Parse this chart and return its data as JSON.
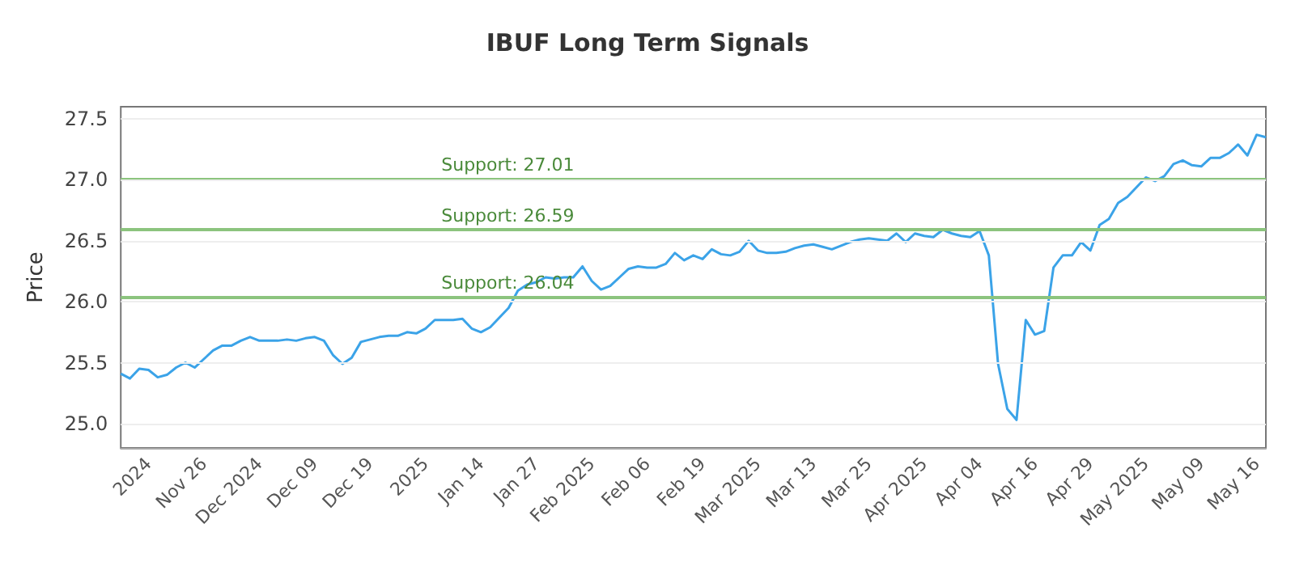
{
  "chart_data": {
    "type": "line",
    "title": "IBUF Long Term Signals",
    "ylabel": "Price",
    "categories": [
      null,
      null,
      null,
      "2024",
      null,
      null,
      null,
      null,
      null,
      "Nov 26",
      null,
      null,
      null,
      null,
      null,
      "Dec 2024",
      null,
      null,
      null,
      null,
      null,
      "Dec 09",
      null,
      null,
      null,
      null,
      null,
      "Dec 19",
      null,
      null,
      null,
      null,
      null,
      "2025",
      null,
      null,
      null,
      null,
      null,
      "Jan 14",
      null,
      null,
      null,
      null,
      null,
      "Jan 27",
      null,
      null,
      null,
      null,
      null,
      "Feb 2025",
      null,
      null,
      null,
      null,
      null,
      "Feb 06",
      null,
      null,
      null,
      null,
      null,
      "Feb 19",
      null,
      null,
      null,
      null,
      null,
      "Mar 2025",
      null,
      null,
      null,
      null,
      null,
      "Mar 13",
      null,
      null,
      null,
      null,
      null,
      "Mar 25",
      null,
      null,
      null,
      null,
      null,
      "Apr 2025",
      null,
      null,
      null,
      null,
      null,
      "Apr 04",
      null,
      null,
      null,
      null,
      null,
      "Apr 16",
      null,
      null,
      null,
      null,
      null,
      "Apr 29",
      null,
      null,
      null,
      null,
      null,
      "May 2025",
      null,
      null,
      null,
      null,
      null,
      "May 09",
      null,
      null,
      null,
      null,
      null,
      "May 16",
      null
    ],
    "series": [
      {
        "color": "#3ba3e8",
        "values": [
          25.41,
          25.37,
          25.45,
          25.44,
          25.38,
          25.4,
          25.46,
          25.5,
          25.46,
          25.53,
          25.6,
          25.64,
          25.64,
          25.68,
          25.71,
          25.68,
          25.68,
          25.68,
          25.69,
          25.68,
          25.7,
          25.71,
          25.68,
          25.56,
          25.49,
          25.54,
          25.67,
          25.69,
          25.71,
          25.72,
          25.72,
          25.75,
          25.74,
          25.78,
          25.85,
          25.85,
          25.85,
          25.86,
          25.78,
          25.75,
          25.79,
          25.87,
          25.95,
          26.09,
          26.14,
          26.16,
          26.2,
          26.19,
          26.2,
          26.2,
          26.29,
          26.17,
          26.1,
          26.13,
          26.2,
          26.27,
          26.29,
          26.28,
          26.28,
          26.31,
          26.4,
          26.34,
          26.38,
          26.35,
          26.43,
          26.39,
          26.38,
          26.41,
          26.5,
          26.42,
          26.4,
          26.4,
          26.41,
          26.44,
          26.46,
          26.47,
          26.45,
          26.43,
          26.46,
          26.49,
          26.51,
          26.52,
          26.51,
          26.5,
          26.56,
          26.49,
          26.56,
          26.54,
          26.53,
          26.59,
          26.56,
          26.54,
          26.53,
          26.58,
          26.38,
          25.49,
          25.12,
          25.03,
          25.85,
          25.73,
          25.76,
          26.28,
          26.38,
          26.38,
          26.49,
          26.42,
          26.63,
          26.68,
          26.81,
          26.86,
          26.94,
          27.02,
          26.99,
          27.03,
          27.13,
          27.16,
          27.12,
          27.11,
          27.18,
          27.18,
          27.22,
          27.29,
          27.2,
          27.37,
          27.35
        ]
      }
    ],
    "ylim": [
      24.8,
      27.6
    ],
    "yticks": [
      {
        "value": 25,
        "label": "25.0"
      },
      {
        "value": 25.5,
        "label": "25.5"
      },
      {
        "value": 26,
        "label": "26.0"
      },
      {
        "value": 26.5,
        "label": "26.5"
      },
      {
        "value": 27,
        "label": "27.0"
      },
      {
        "value": 27.5,
        "label": "27.5"
      }
    ],
    "ref_lines": [
      {
        "axis": "y",
        "value": 27.01,
        "label": "Support: 27.01",
        "color": "#8cc47e"
      },
      {
        "axis": "y",
        "value": 26.59,
        "label": "Support: 26.59",
        "color": "#8cc47e"
      },
      {
        "axis": "y",
        "value": 26.04,
        "label": "Support: 26.04",
        "color": "#8cc47e"
      }
    ],
    "grid": "y",
    "marker": "none",
    "line_style": "solid"
  }
}
